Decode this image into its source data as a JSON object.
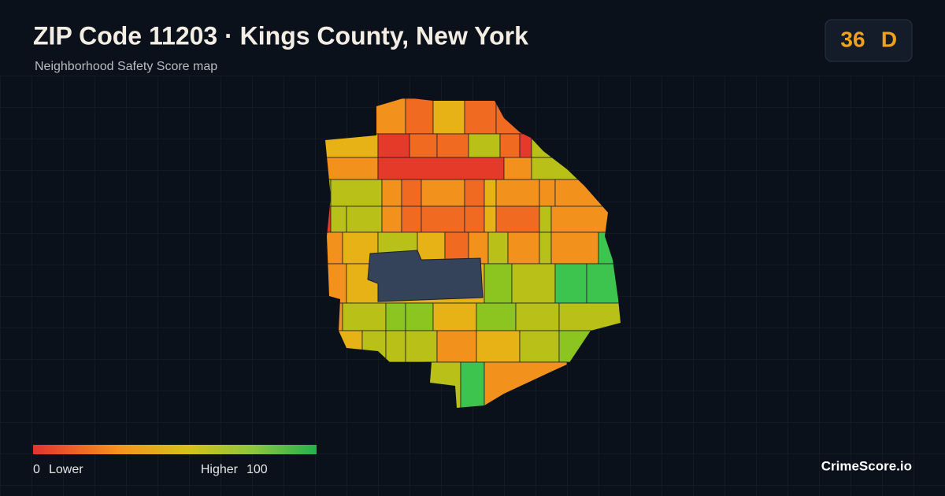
{
  "header": {
    "title": "ZIP Code 11203 · Kings County, New York",
    "subtitle": "Neighborhood Safety Score map"
  },
  "score": {
    "value": 36,
    "grade": "D"
  },
  "legend": {
    "min": 0,
    "min_label": "Lower",
    "max_label": "Higher",
    "max": 100
  },
  "brand": "CrimeScore.io"
}
